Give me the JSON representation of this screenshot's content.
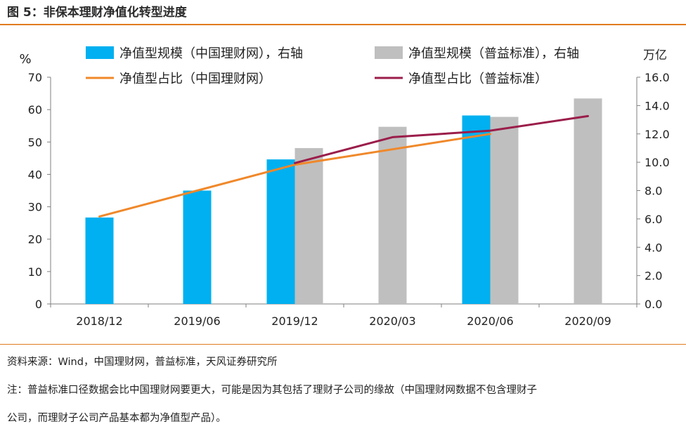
{
  "figure": {
    "title": "图 5：非保本理财净值化转型进度",
    "source_note": "资料来源：Wind，中国理财网，普益标准，天风证券研究所",
    "note_line1": "注：普益标准口径数据会比中国理财网要更大，可能是因为其包括了理财子公司的缘故（中国理财网数据不包含理财子",
    "note_line2": "公司，而理财子公司产品基本都为净值型产品）。"
  },
  "colors": {
    "accent_rule": "#e07b1e",
    "bar_cfw": "#00b0f0",
    "bar_puyi": "#bfbfbf",
    "line_cfw": "#f0882a",
    "line_puyi": "#9b1d4a",
    "axis": "#7f7f7f"
  },
  "chart_data": {
    "type": "bar",
    "categories": [
      "2018/12",
      "2019/06",
      "2019/12",
      "2020/03",
      "2020/06",
      "2020/09"
    ],
    "left_axis": {
      "label": "%",
      "ylim": [
        0,
        70
      ],
      "ticks": [
        "0",
        "10",
        "20",
        "30",
        "40",
        "50",
        "60",
        "70"
      ]
    },
    "right_axis": {
      "label": "万亿",
      "ylim": [
        0,
        16
      ],
      "ticks": [
        "0.0",
        "2.0",
        "4.0",
        "6.0",
        "8.0",
        "10.0",
        "12.0",
        "14.0",
        "16.0"
      ]
    },
    "bar_series": [
      {
        "name": "净值型规模（中国理财网），右轴",
        "axis": "right",
        "values": [
          6.1,
          8.0,
          10.2,
          null,
          13.3,
          null
        ]
      },
      {
        "name": "净值型规模（普益标准），右轴",
        "axis": "right",
        "values": [
          null,
          null,
          11.0,
          12.5,
          13.2,
          14.5
        ]
      }
    ],
    "line_series": [
      {
        "name": "净值型占比（中国理财网）",
        "axis": "left",
        "values": [
          27,
          35,
          43,
          null,
          52.5,
          null
        ]
      },
      {
        "name": "净值型占比（普益标准）",
        "axis": "left",
        "values": [
          null,
          null,
          43.5,
          51.5,
          53.5,
          58
        ]
      }
    ],
    "legend": [
      "净值型规模（中国理财网），右轴",
      "净值型规模（普益标准），右轴",
      "净值型占比（中国理财网）",
      "净值型占比（普益标准）"
    ],
    "legend_position": "top",
    "grid": false
  }
}
